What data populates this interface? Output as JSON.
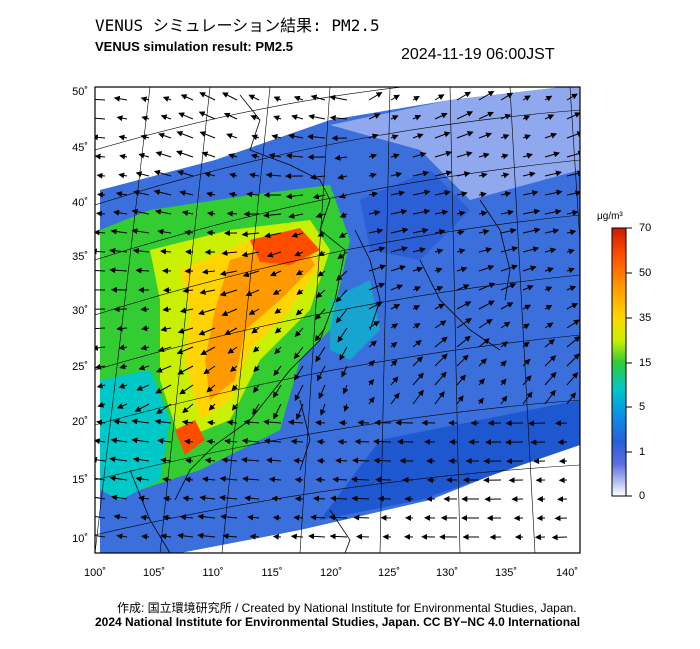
{
  "title_jp": "VENUS シミュレーション結果: PM2.5",
  "title_en": "VENUS simulation result: PM2.5",
  "timestamp": "2024-11-19 06:00JST",
  "y_ticks": [
    "50˚",
    "45˚",
    "40˚",
    "35˚",
    "30˚",
    "25˚",
    "20˚",
    "15˚",
    "10˚"
  ],
  "x_ticks": [
    "100˚",
    "105˚",
    "110˚",
    "115˚",
    "120˚",
    "125˚",
    "130˚",
    "135˚",
    "140˚"
  ],
  "colorbar": {
    "unit": "μg/m³",
    "labels": [
      "70",
      "50",
      "35",
      "15",
      "5",
      "1",
      "0"
    ],
    "colors": [
      "#cc1a00",
      "#ff4d00",
      "#ff9900",
      "#ffd400",
      "#c8f000",
      "#33cc33",
      "#00c8c8",
      "#0a8fe6",
      "#2a5fd6",
      "#5a6ee0",
      "#b8c4f0",
      "#ffffff"
    ]
  },
  "credit_line1": "作成: 国立環境研究所 / Created by National Institute for Environmental Studies, Japan.",
  "credit_line2": "2024 National Institute for Environmental Studies, Japan. CC BY−NC 4.0 International"
}
